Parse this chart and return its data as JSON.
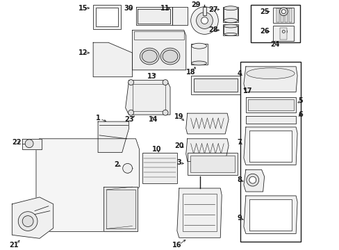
{
  "bg_color": "#ffffff",
  "line_color": "#1a1a1a",
  "fig_width": 4.89,
  "fig_height": 3.6,
  "dpi": 100,
  "lw": 0.55
}
